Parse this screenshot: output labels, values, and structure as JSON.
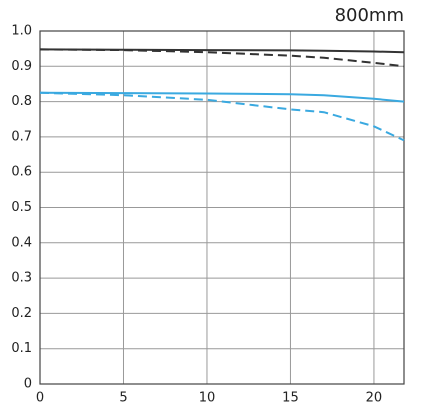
{
  "chart_data": {
    "type": "line",
    "title": "800mm",
    "x": [
      0,
      5,
      10,
      15,
      17,
      20,
      21.8
    ],
    "series": [
      {
        "color": "#333333",
        "style": "solid",
        "values": [
          0.948,
          0.947,
          0.946,
          0.945,
          0.944,
          0.942,
          0.94
        ]
      },
      {
        "color": "#333333",
        "style": "dashed",
        "values": [
          0.948,
          0.946,
          0.94,
          0.93,
          0.924,
          0.91,
          0.9
        ]
      },
      {
        "color": "#3aa9e0",
        "style": "solid",
        "values": [
          0.825,
          0.824,
          0.823,
          0.821,
          0.818,
          0.808,
          0.8
        ]
      },
      {
        "color": "#3aa9e0",
        "style": "dashed",
        "values": [
          0.825,
          0.818,
          0.805,
          0.778,
          0.77,
          0.73,
          0.69
        ]
      }
    ],
    "xlim": [
      0,
      21.8
    ],
    "xticks": [
      0,
      5,
      10,
      15,
      20
    ],
    "ylim": [
      0,
      1
    ],
    "yticks": [
      0,
      0.1,
      0.2,
      0.3,
      0.4,
      0.5,
      0.6,
      0.7,
      0.8,
      0.9,
      {
        "value": 1,
        "label": "1.0"
      }
    ],
    "grid": true
  }
}
